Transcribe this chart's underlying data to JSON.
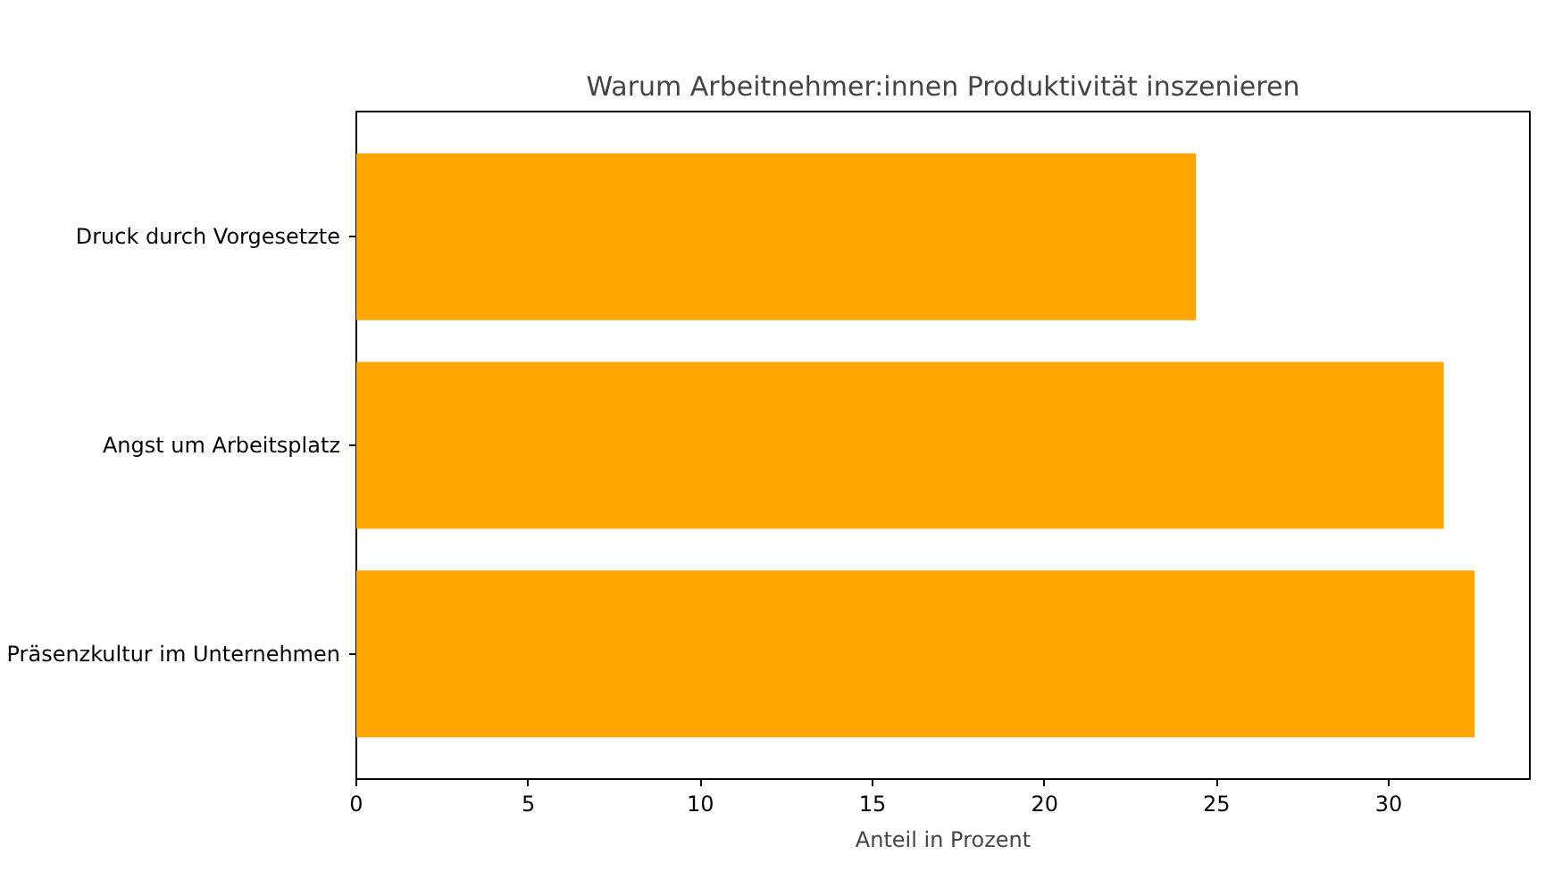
{
  "chart_data": {
    "type": "bar",
    "orientation": "horizontal",
    "title": "Warum Arbeitnehmer:innen Produktivität inszenieren",
    "xlabel": "Anteil in Prozent",
    "categories": [
      "Druck durch Vorgesetzte",
      "Angst um Arbeitsplatz",
      "Präsenzkultur im Unternehmen"
    ],
    "values": [
      24.4,
      31.6,
      32.5
    ],
    "color": "#ffa500",
    "xlim": [
      0,
      34.1
    ],
    "xticks": [
      0,
      5,
      10,
      15,
      20,
      25,
      30
    ],
    "grid": false
  }
}
